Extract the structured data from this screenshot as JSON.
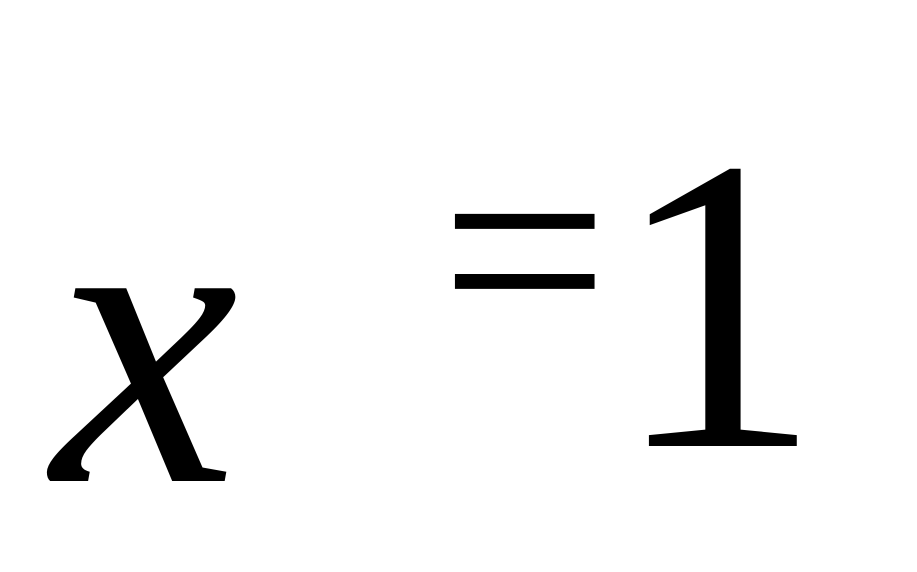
{
  "formula": {
    "variable": "x",
    "operator": "=",
    "value": "1"
  }
}
